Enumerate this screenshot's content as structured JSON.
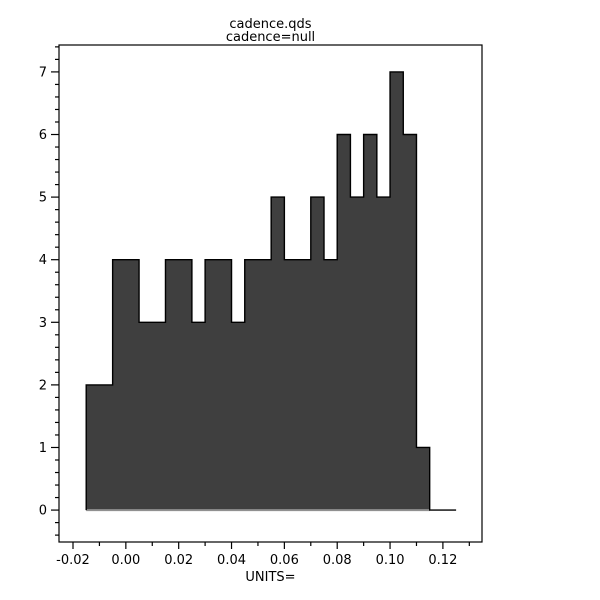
{
  "title": {
    "line1": "cadence.qds",
    "line2": "cadence=null"
  },
  "chart_data": {
    "type": "bar",
    "subtype": "histogram-step",
    "title": "cadence.qds",
    "subtitle": "cadence=null",
    "xlabel": "UNITS=",
    "ylabel": "",
    "bin_start": -0.015,
    "bin_width": 0.005,
    "bin_edges": [
      -0.015,
      -0.01,
      -0.005,
      0.0,
      0.005,
      0.01,
      0.015,
      0.02,
      0.025,
      0.03,
      0.035,
      0.04,
      0.045,
      0.05,
      0.055,
      0.06,
      0.065,
      0.07,
      0.075,
      0.08,
      0.085,
      0.09,
      0.095,
      0.1,
      0.105,
      0.11,
      0.115,
      0.12,
      0.125
    ],
    "counts": [
      2,
      2,
      4,
      4,
      3,
      3,
      4,
      4,
      3,
      4,
      4,
      3,
      4,
      4,
      5,
      4,
      4,
      5,
      4,
      6,
      5,
      6,
      5,
      7,
      6,
      1,
      0,
      0
    ],
    "xlim": [
      -0.0253,
      0.1348
    ],
    "ylim": [
      -0.51,
      7.43
    ],
    "x_major_ticks": [
      -0.02,
      0.0,
      0.02,
      0.04,
      0.06,
      0.08,
      0.1,
      0.12
    ],
    "x_tick_labels": [
      "-0.02",
      "0.00",
      "0.02",
      "0.04",
      "0.06",
      "0.08",
      "0.10",
      "0.12"
    ],
    "x_minor_step": 0.01,
    "y_major_ticks": [
      0,
      1,
      2,
      3,
      4,
      5,
      6,
      7
    ],
    "y_tick_labels": [
      "0",
      "1",
      "2",
      "3",
      "4",
      "5",
      "6",
      "7"
    ],
    "y_minor_step": 0.2,
    "grid": "off",
    "legend": "none",
    "colors": {
      "fill": "#3f3f3f",
      "outline": "#000000",
      "frame": "#000000",
      "baseline": "#909090",
      "background": "#ffffff",
      "text": "#000000"
    }
  }
}
